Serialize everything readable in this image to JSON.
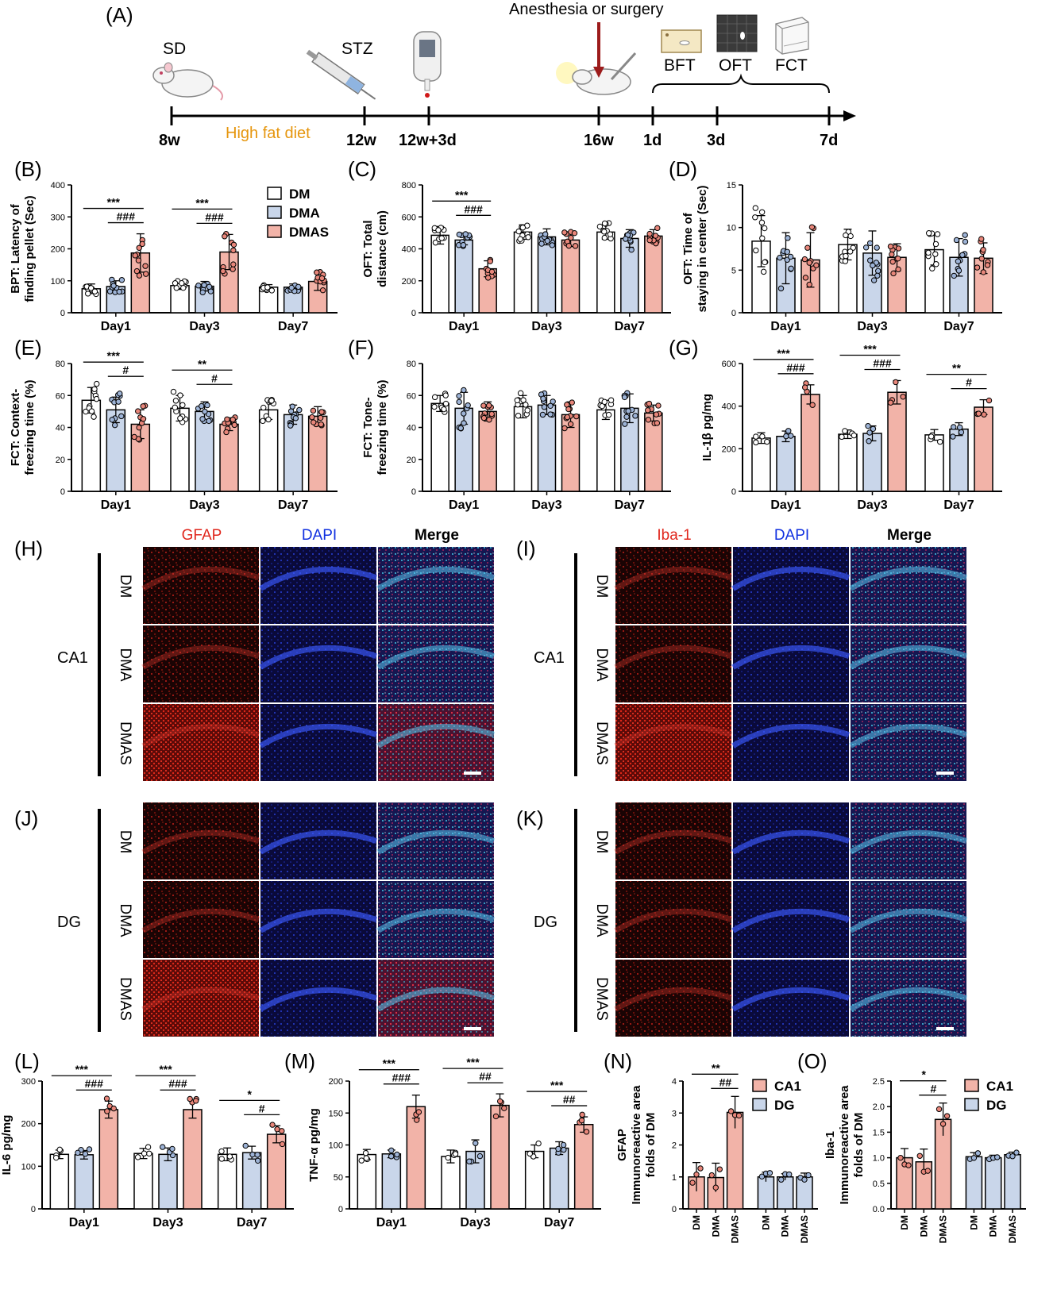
{
  "colors": {
    "DM": "#ffffff",
    "DMA": "#c9d6ea",
    "DMAS": "#f2b3a8",
    "CA1": "#f2b3a8",
    "DG": "#c9d6ea",
    "highlight": "#e6960e",
    "arrow": "#9c1b1b",
    "red": "#e0261c",
    "blue": "#1030e0"
  },
  "panel_letters": {
    "A": "(A)",
    "B": "(B)",
    "C": "(C)",
    "D": "(D)",
    "E": "(E)",
    "F": "(F)",
    "G": "(G)",
    "H": "(H)",
    "I": "(I)",
    "J": "(J)",
    "K": "(K)",
    "L": "(L)",
    "M": "(M)",
    "N": "(N)",
    "O": "(O)"
  },
  "timeline": {
    "top_label": "Anesthesia or surgery",
    "sd": "SD",
    "stz": "STZ",
    "diet": "High fat diet",
    "tests": [
      "BFT",
      "OFT",
      "FCT"
    ],
    "ticks": [
      "8w",
      "12w",
      "12w+3d",
      "16w",
      "1d",
      "3d",
      "7d"
    ],
    "icons": [
      "rat-icon",
      "syringe-icon",
      "glucometer-icon",
      "surgery-icon",
      "bft-arena-icon",
      "oft-arena-icon",
      "fct-chamber-icon"
    ]
  },
  "legend": {
    "items": [
      "DM",
      "DMA",
      "DMAS"
    ]
  },
  "imaging": {
    "H": {
      "cols": [
        "GFAP",
        "DAPI",
        "Merge"
      ],
      "region": "CA1",
      "rows": [
        "DM",
        "DMA",
        "DMAS"
      ]
    },
    "I": {
      "cols": [
        "Iba-1",
        "DAPI",
        "Merge"
      ],
      "region": "CA1",
      "rows": [
        "DM",
        "DMA",
        "DMAS"
      ]
    },
    "J": {
      "cols": [
        "GFAP",
        "DAPI",
        "Merge"
      ],
      "region": "DG",
      "rows": [
        "DM",
        "DMA",
        "DMAS"
      ]
    },
    "K": {
      "cols": [
        "Iba-1",
        "DAPI",
        "Merge"
      ],
      "region": "DG",
      "rows": [
        "DM",
        "DMA",
        "DMAS"
      ]
    }
  },
  "chart_data": [
    {
      "panel": "B",
      "type": "bar",
      "ylabel": [
        "BPT: Latency of",
        "finding pellet (Sec)"
      ],
      "ylim": [
        0,
        400
      ],
      "yticks": [
        0,
        100,
        200,
        300,
        400
      ],
      "categories": [
        "Day1",
        "Day3",
        "Day7"
      ],
      "series_names": [
        "DM",
        "DMA",
        "DMAS"
      ],
      "values": [
        [
          75,
          82,
          187
        ],
        [
          85,
          83,
          190
        ],
        [
          80,
          80,
          98
        ]
      ],
      "errors": [
        [
          15,
          18,
          60
        ],
        [
          12,
          15,
          55
        ],
        [
          8,
          10,
          28
        ]
      ],
      "annotations": [
        {
          "g": 0,
          "a": 0,
          "b": 2,
          "text": "***"
        },
        {
          "g": 0,
          "a": 1,
          "b": 2,
          "text": "###"
        },
        {
          "g": 1,
          "a": 0,
          "b": 2,
          "text": "***"
        },
        {
          "g": 1,
          "a": 1,
          "b": 2,
          "text": "###"
        }
      ]
    },
    {
      "panel": "C",
      "type": "bar",
      "ylabel": [
        "OFT:  Total",
        "distance (cm)"
      ],
      "ylim": [
        0,
        800
      ],
      "yticks": [
        0,
        200,
        400,
        600,
        800
      ],
      "categories": [
        "Day1",
        "Day3",
        "Day7"
      ],
      "series_names": [
        "DM",
        "DMA",
        "DMAS"
      ],
      "values": [
        [
          485,
          455,
          275
        ],
        [
          505,
          475,
          455
        ],
        [
          505,
          465,
          480
        ]
      ],
      "errors": [
        [
          55,
          30,
          50
        ],
        [
          45,
          50,
          40
        ],
        [
          45,
          55,
          40
        ]
      ],
      "annotations": [
        {
          "g": 0,
          "a": 0,
          "b": 2,
          "text": "***"
        },
        {
          "g": 0,
          "a": 1,
          "b": 2,
          "text": "###"
        }
      ]
    },
    {
      "panel": "D",
      "type": "bar",
      "ylabel": [
        "OFT:  Time of",
        "staying in center (Sec)"
      ],
      "ylim": [
        0,
        15
      ],
      "yticks": [
        0,
        5,
        10,
        15
      ],
      "categories": [
        "Day1",
        "Day3",
        "Day7"
      ],
      "series_names": [
        "DM",
        "DMA",
        "DMAS"
      ],
      "values": [
        [
          8.4,
          6.4,
          6.2
        ],
        [
          8.0,
          7.0,
          6.5
        ],
        [
          7.4,
          6.5,
          6.4
        ]
      ],
      "errors": [
        [
          3.0,
          3.0,
          3.2
        ],
        [
          1.8,
          2.6,
          1.6
        ],
        [
          1.8,
          2.2,
          1.8
        ]
      ],
      "annotations": []
    },
    {
      "panel": "E",
      "type": "bar",
      "ylabel": [
        "FCT:  Context-",
        "freezing time (%)"
      ],
      "ylim": [
        0,
        80
      ],
      "yticks": [
        0,
        20,
        40,
        60,
        80
      ],
      "categories": [
        "Day1",
        "Day3",
        "Day7"
      ],
      "series_names": [
        "DM",
        "DMA",
        "DMAS"
      ],
      "values": [
        [
          57,
          51,
          42
        ],
        [
          52,
          50,
          42
        ],
        [
          51,
          48,
          47
        ]
      ],
      "errors": [
        [
          8,
          8,
          9
        ],
        [
          8,
          6,
          4
        ],
        [
          6,
          6,
          6
        ]
      ],
      "annotations": [
        {
          "g": 0,
          "a": 0,
          "b": 2,
          "text": "***"
        },
        {
          "g": 0,
          "a": 1,
          "b": 2,
          "text": "#"
        },
        {
          "g": 1,
          "a": 0,
          "b": 2,
          "text": "**"
        },
        {
          "g": 1,
          "a": 1,
          "b": 2,
          "text": "#"
        }
      ]
    },
    {
      "panel": "F",
      "type": "bar",
      "ylabel": [
        "FCT:  Tone-",
        "freezing time (%)"
      ],
      "ylim": [
        0,
        80
      ],
      "yticks": [
        0,
        20,
        40,
        60,
        80
      ],
      "categories": [
        "Day1",
        "Day3",
        "Day7"
      ],
      "series_names": [
        "DM",
        "DMA",
        "DMAS"
      ],
      "values": [
        [
          55,
          52,
          50
        ],
        [
          53,
          54,
          48
        ],
        [
          51,
          52,
          49
        ]
      ],
      "errors": [
        [
          5,
          10,
          6
        ],
        [
          7,
          6,
          8
        ],
        [
          6,
          9,
          5
        ]
      ],
      "annotations": []
    },
    {
      "panel": "G",
      "type": "bar",
      "ylabel": [
        "IL-1β pg/mg"
      ],
      "ylim": [
        0,
        600
      ],
      "yticks": [
        0,
        200,
        400,
        600
      ],
      "categories": [
        "Day1",
        "Day3",
        "Day7"
      ],
      "series_names": [
        "DM",
        "DMA",
        "DMAS"
      ],
      "values": [
        [
          250,
          258,
          455
        ],
        [
          268,
          272,
          465
        ],
        [
          265,
          292,
          395
        ]
      ],
      "errors": [
        [
          25,
          25,
          45
        ],
        [
          20,
          35,
          55
        ],
        [
          25,
          30,
          35
        ]
      ],
      "annotations": [
        {
          "g": 0,
          "a": 0,
          "b": 2,
          "text": "***"
        },
        {
          "g": 0,
          "a": 1,
          "b": 2,
          "text": "###"
        },
        {
          "g": 1,
          "a": 0,
          "b": 2,
          "text": "***"
        },
        {
          "g": 1,
          "a": 1,
          "b": 2,
          "text": "###"
        },
        {
          "g": 2,
          "a": 0,
          "b": 2,
          "text": "**"
        },
        {
          "g": 2,
          "a": 1,
          "b": 2,
          "text": "#"
        }
      ]
    },
    {
      "panel": "L",
      "type": "bar",
      "ylabel": [
        "IL-6 pg/mg"
      ],
      "ylim": [
        0,
        300
      ],
      "yticks": [
        0,
        100,
        200,
        300
      ],
      "categories": [
        "Day1",
        "Day3",
        "Day7"
      ],
      "series_names": [
        "DM",
        "DMA",
        "DMAS"
      ],
      "values": [
        [
          128,
          127,
          233
        ],
        [
          130,
          128,
          233
        ],
        [
          128,
          132,
          175
        ]
      ],
      "errors": [
        [
          10,
          10,
          20
        ],
        [
          12,
          15,
          20
        ],
        [
          15,
          15,
          20
        ]
      ],
      "annotations": [
        {
          "g": 0,
          "a": 0,
          "b": 2,
          "text": "***"
        },
        {
          "g": 0,
          "a": 1,
          "b": 2,
          "text": "###"
        },
        {
          "g": 1,
          "a": 0,
          "b": 2,
          "text": "***"
        },
        {
          "g": 1,
          "a": 1,
          "b": 2,
          "text": "###"
        },
        {
          "g": 2,
          "a": 0,
          "b": 2,
          "text": "*"
        },
        {
          "g": 2,
          "a": 1,
          "b": 2,
          "text": "#"
        }
      ]
    },
    {
      "panel": "M",
      "type": "bar",
      "ylabel": [
        "TNF-α pg/mg"
      ],
      "ylim": [
        0,
        200
      ],
      "yticks": [
        0,
        50,
        100,
        150,
        200
      ],
      "categories": [
        "Day1",
        "Day3",
        "Day7"
      ],
      "series_names": [
        "DM",
        "DMA",
        "DMAS"
      ],
      "values": [
        [
          85,
          86,
          160
        ],
        [
          82,
          90,
          162
        ],
        [
          90,
          95,
          132
        ]
      ],
      "errors": [
        [
          8,
          6,
          18
        ],
        [
          10,
          18,
          18
        ],
        [
          10,
          10,
          12
        ]
      ],
      "annotations": [
        {
          "g": 0,
          "a": 0,
          "b": 2,
          "text": "***"
        },
        {
          "g": 0,
          "a": 1,
          "b": 2,
          "text": "###"
        },
        {
          "g": 1,
          "a": 0,
          "b": 2,
          "text": "***"
        },
        {
          "g": 1,
          "a": 1,
          "b": 2,
          "text": "##"
        },
        {
          "g": 2,
          "a": 0,
          "b": 2,
          "text": "***"
        },
        {
          "g": 2,
          "a": 1,
          "b": 2,
          "text": "##"
        }
      ]
    },
    {
      "panel": "N",
      "type": "bar",
      "ylabel": [
        "GFAP",
        "Immunoreactive area",
        "folds of DM"
      ],
      "ylim": [
        0,
        4
      ],
      "yticks": [
        0,
        1,
        2,
        3,
        4
      ],
      "categories": [
        "DM",
        "DMA",
        "DMAS",
        "DM",
        "DMA",
        "DMAS"
      ],
      "series_names": [
        "CA1",
        "DG"
      ],
      "values": [
        1.0,
        0.98,
        3.02,
        1.0,
        1.0,
        1.0
      ],
      "errors": [
        0.45,
        0.45,
        0.5,
        0.15,
        0.1,
        0.12
      ],
      "annotations": [
        {
          "a": 0,
          "b": 2,
          "text": "**"
        },
        {
          "a": 1,
          "b": 2,
          "text": "##"
        }
      ]
    },
    {
      "panel": "O",
      "type": "bar",
      "ylabel": [
        "Iba-1",
        "Immunoreactive area",
        "folds of DM"
      ],
      "ylim": [
        0,
        2.5
      ],
      "yticks": [
        0.0,
        0.5,
        1.0,
        1.5,
        2.0,
        2.5
      ],
      "categories": [
        "DM",
        "DMA",
        "DMAS",
        "DM",
        "DMA",
        "DMAS"
      ],
      "series_names": [
        "CA1",
        "DG"
      ],
      "values": [
        1.0,
        0.92,
        1.75,
        1.02,
        1.0,
        1.06
      ],
      "errors": [
        0.18,
        0.25,
        0.32,
        0.08,
        0.05,
        0.05
      ],
      "annotations": [
        {
          "a": 0,
          "b": 2,
          "text": "*"
        },
        {
          "a": 1,
          "b": 2,
          "text": "#"
        }
      ]
    }
  ]
}
